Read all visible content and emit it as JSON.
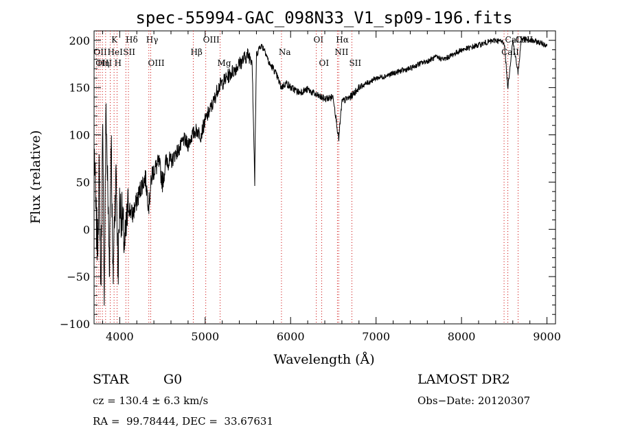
{
  "chart_data": {
    "type": "line",
    "title": "spec-55994-GAC_098N33_V1_sp09-196.fits",
    "xlabel": "Wavelength (Å)",
    "ylabel": "Flux (relative)",
    "xlim": [
      3700,
      9100
    ],
    "ylim": [
      -100,
      210
    ],
    "x_ticks": [
      4000,
      5000,
      6000,
      7000,
      8000,
      9000
    ],
    "y_ticks": [
      -100,
      -50,
      0,
      50,
      100,
      150,
      200
    ],
    "x_tick_labels": [
      "4000",
      "5000",
      "6000",
      "7000",
      "8000",
      "9000"
    ],
    "y_tick_labels": [
      "−100",
      "−50",
      "0",
      "50",
      "100",
      "150",
      "200"
    ],
    "line_color": "#000000",
    "marker_color": "#cc0000",
    "series": [
      {
        "x": [
          3705,
          3720,
          3740,
          3760,
          3780,
          3800,
          3820,
          3840,
          3860,
          3880,
          3900,
          3920,
          3940,
          3960,
          3980,
          4000,
          4030,
          4060,
          4100,
          4150,
          4200,
          4250,
          4300,
          4340,
          4380,
          4420,
          4460,
          4500,
          4550,
          4600,
          4650,
          4700,
          4750,
          4800,
          4850,
          4900,
          4950,
          5000,
          5050,
          5100,
          5150,
          5200,
          5250,
          5300,
          5350,
          5400,
          5450,
          5500,
          5550,
          5580,
          5600,
          5650,
          5700,
          5750,
          5800,
          5850,
          5890,
          5950,
          6000,
          6100,
          6200,
          6300,
          6400,
          6500,
          6563,
          6600,
          6700,
          6800,
          6900,
          7000,
          7100,
          7200,
          7300,
          7400,
          7500,
          7600,
          7700,
          7800,
          7900,
          8000,
          8100,
          8200,
          8300,
          8400,
          8500,
          8542,
          8600,
          8662,
          8700,
          8800,
          8900,
          9000
        ],
        "y": [
          80,
          20,
          -20,
          60,
          -60,
          100,
          -70,
          130,
          40,
          -40,
          110,
          -60,
          20,
          60,
          -50,
          30,
          10,
          -20,
          25,
          15,
          30,
          45,
          55,
          25,
          60,
          65,
          70,
          50,
          75,
          70,
          80,
          85,
          95,
          90,
          100,
          105,
          100,
          115,
          125,
          135,
          150,
          155,
          160,
          165,
          170,
          175,
          180,
          185,
          180,
          50,
          185,
          195,
          190,
          175,
          170,
          160,
          150,
          155,
          150,
          145,
          148,
          142,
          138,
          140,
          95,
          135,
          140,
          150,
          155,
          160,
          162,
          165,
          168,
          170,
          175,
          178,
          182,
          180,
          185,
          190,
          192,
          195,
          198,
          200,
          198,
          150,
          200,
          165,
          202,
          200,
          198,
          195
        ]
      }
    ],
    "line_markers": [
      {
        "x": 3727,
        "label": "OII",
        "row": 2
      },
      {
        "x": 3750,
        "label": "OIII",
        "row": 3
      },
      {
        "x": 3771,
        "label": "Hη",
        "row": 3
      },
      {
        "x": 3798,
        "label": "",
        "row": 0
      },
      {
        "x": 3835,
        "label": "",
        "row": 0
      },
      {
        "x": 3889,
        "label": "HeI",
        "row": 2
      },
      {
        "x": 3934,
        "label": "K",
        "row": 1
      },
      {
        "x": 3969,
        "label": "H",
        "row": 3
      },
      {
        "x": 4072,
        "label": "SII",
        "row": 2
      },
      {
        "x": 4102,
        "label": "Hδ",
        "row": 1
      },
      {
        "x": 4341,
        "label": "Hγ",
        "row": 1
      },
      {
        "x": 4363,
        "label": "OIII",
        "row": 3
      },
      {
        "x": 4861,
        "label": "Hβ",
        "row": 2
      },
      {
        "x": 5007,
        "label": "OIII",
        "row": 1
      },
      {
        "x": 5175,
        "label": "Mg",
        "row": 3
      },
      {
        "x": 5893,
        "label": "Na",
        "row": 2
      },
      {
        "x": 6300,
        "label": "OI",
        "row": 1
      },
      {
        "x": 6364,
        "label": "OI",
        "row": 3
      },
      {
        "x": 6548,
        "label": "NII",
        "row": 2
      },
      {
        "x": 6563,
        "label": "Hα",
        "row": 1
      },
      {
        "x": 6717,
        "label": "SII",
        "row": 3
      },
      {
        "x": 8498,
        "label": "CaII",
        "row": 2
      },
      {
        "x": 8542,
        "label": "CaII",
        "row": 1
      },
      {
        "x": 8662,
        "label": "CaII",
        "row": 1
      }
    ]
  },
  "info": {
    "class": "STAR",
    "subclass": "G0",
    "survey": "LAMOST DR2",
    "cz": "cz = 130.4 ± 6.3 km/s",
    "obs_date": "Obs−Date: 20120307",
    "coords": "RA =  99.78444, DEC =  33.67631"
  }
}
